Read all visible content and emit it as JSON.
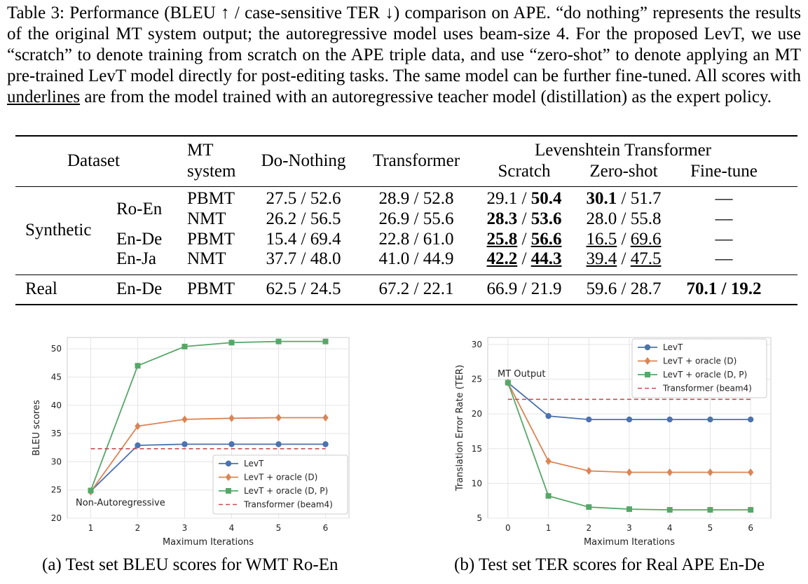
{
  "caption": {
    "part1": "Table 3: Performance (BLEU ↑ / case-sensitive TER ↓) comparison on APE. “do nothing” represents the results of the original MT system output; the autoregressive model uses beam-size 4. For the proposed LevT, we use “scratch” to denote training from scratch on the APE triple data, and use “zero-shot” to denote applying an MT pre-trained LevT model directly for post-editing tasks. The same model can be further fine-tuned. All scores with ",
    "underlined_word": "underlines",
    "part2": " are from the model trained with an autoregressive teacher model (distillation) as the expert policy."
  },
  "table": {
    "headers": {
      "dataset": "Dataset",
      "mt_line1": "MT",
      "mt_line2": "system",
      "do_nothing": "Do-Nothing",
      "transformer": "Transformer",
      "levt": "Levenshtein Transformer",
      "scratch": "Scratch",
      "zero_shot": "Zero-shot",
      "fine_tune": "Fine-tune"
    },
    "groups": {
      "synthetic": "Synthetic",
      "real": "Real"
    },
    "rows": [
      {
        "pair": "Ro-En",
        "mt": "PBMT",
        "do_nothing": "27.5 / 52.6",
        "transformer": "28.9 / 52.8",
        "scratch_bleu": "29.1",
        "scratch_ter": "50.4",
        "zs_bleu": "30.1",
        "zs_ter": "51.7",
        "fine_tune": "—"
      },
      {
        "pair": "",
        "mt": "NMT",
        "do_nothing": "26.2 / 56.5",
        "transformer": "26.9 / 55.6",
        "scratch_bleu": "28.3",
        "scratch_ter": "53.6",
        "zs_bleu": "28.0",
        "zs_ter": "55.8",
        "fine_tune": "—"
      },
      {
        "pair": "En-De",
        "mt": "PBMT",
        "do_nothing": "15.4 / 69.4",
        "transformer": "22.8 / 61.0",
        "scratch_bleu": "25.8",
        "scratch_ter": "56.6",
        "zs_bleu": "16.5",
        "zs_ter": "69.6",
        "fine_tune": "—"
      },
      {
        "pair": "En-Ja",
        "mt": "NMT",
        "do_nothing": "37.7 / 48.0",
        "transformer": "41.0 / 44.9",
        "scratch_bleu": "42.2",
        "scratch_ter": "44.3",
        "zs_bleu": "39.4",
        "zs_ter": "47.5",
        "fine_tune": "—"
      },
      {
        "pair": "En-De",
        "mt": "PBMT",
        "do_nothing": "62.5 / 24.5",
        "transformer": "67.2 / 22.1",
        "scratch_bleu": "66.9",
        "scratch_ter": "21.9",
        "zs_bleu": "59.6",
        "zs_ter": "28.7",
        "fine_tune": "70.1 / 19.2"
      }
    ],
    "slash": " / "
  },
  "colors": {
    "levt": "#4c72b0",
    "oracle_d": "#dd8452",
    "oracle_dp": "#55a868",
    "transformer": "#c44e52",
    "grid": "#e5e5e5"
  },
  "chart_data": [
    {
      "type": "line",
      "xlabel": "Maximum Iterations",
      "ylabel": "BLEU scores",
      "xlim": [
        0.5,
        6.5
      ],
      "ylim": [
        20,
        52
      ],
      "xticks": [
        "1",
        "2",
        "3",
        "4",
        "5",
        "6"
      ],
      "yticks": [
        "20",
        "25",
        "30",
        "35",
        "40",
        "45",
        "50"
      ],
      "annotation": "Non-Autoregressive",
      "legend_position": "lower-right",
      "series": [
        {
          "name": "LevT",
          "marker": "circle",
          "x": [
            1,
            2,
            3,
            4,
            5,
            6
          ],
          "values": [
            24.8,
            32.9,
            33.1,
            33.1,
            33.1,
            33.1
          ]
        },
        {
          "name": "LevT + oracle (D)",
          "marker": "diamond",
          "x": [
            1,
            2,
            3,
            4,
            5,
            6
          ],
          "values": [
            24.7,
            36.3,
            37.5,
            37.7,
            37.8,
            37.8
          ]
        },
        {
          "name": "LevT + oracle (D, P)",
          "marker": "square",
          "x": [
            1,
            2,
            3,
            4,
            5,
            6
          ],
          "values": [
            24.9,
            47.0,
            50.4,
            51.1,
            51.3,
            51.3
          ]
        },
        {
          "name": "Transformer (beam4)",
          "marker": "dashed",
          "x": [
            1,
            6
          ],
          "values": [
            32.3,
            32.3
          ]
        }
      ],
      "caption": "(a) Test set BLEU scores for WMT Ro-En"
    },
    {
      "type": "line",
      "xlabel": "Maximum Iterations",
      "ylabel": "Translation Error Rate (TER)",
      "xlim": [
        -0.5,
        6.5
      ],
      "ylim": [
        5,
        31
      ],
      "xticks": [
        "0",
        "1",
        "2",
        "3",
        "4",
        "5",
        "6"
      ],
      "yticks": [
        "5",
        "10",
        "15",
        "20",
        "25",
        "30"
      ],
      "annotation": "MT Output",
      "legend_position": "upper-right",
      "series": [
        {
          "name": "LevT",
          "marker": "circle",
          "x": [
            0,
            1,
            2,
            3,
            4,
            5,
            6
          ],
          "values": [
            24.5,
            19.7,
            19.2,
            19.2,
            19.2,
            19.2,
            19.2
          ]
        },
        {
          "name": "LevT + oracle (D)",
          "marker": "diamond",
          "x": [
            0,
            1,
            2,
            3,
            4,
            5,
            6
          ],
          "values": [
            24.5,
            13.2,
            11.8,
            11.6,
            11.6,
            11.6,
            11.6
          ]
        },
        {
          "name": "LevT + oracle (D, P)",
          "marker": "square",
          "x": [
            0,
            1,
            2,
            3,
            4,
            5,
            6
          ],
          "values": [
            24.5,
            8.2,
            6.6,
            6.3,
            6.2,
            6.2,
            6.2
          ]
        },
        {
          "name": "Transformer (beam4)",
          "marker": "dashed",
          "x": [
            0,
            6
          ],
          "values": [
            22.1,
            22.1
          ]
        }
      ],
      "caption": "(b) Test set TER scores for Real APE En-De"
    }
  ]
}
